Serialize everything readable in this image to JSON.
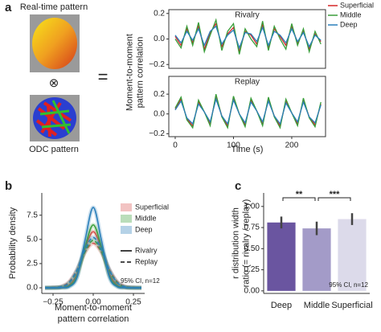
{
  "figure": {
    "panels": [
      "a",
      "b",
      "c"
    ],
    "image_captions": [
      "Real-time pattern",
      "ODC pattern"
    ],
    "symbols": [
      "⊗",
      "="
    ]
  },
  "chart_data": [
    {
      "type": "line",
      "title": "Rivalry",
      "frame": "box",
      "xlim": [
        -11,
        258
      ],
      "ylim": [
        -0.23,
        0.23
      ],
      "yticks": [
        {
          "value": -0.2,
          "label": "−0.2"
        },
        {
          "value": 0,
          "label": "0.0"
        },
        {
          "value": 0.2,
          "label": "0.2"
        }
      ],
      "ylabel": [
        "Moment-to-moment",
        "pattern correlation"
      ],
      "x": [
        0,
        10,
        20,
        30,
        40,
        50,
        60,
        70,
        80,
        90,
        100,
        110,
        120,
        130,
        140,
        150,
        160,
        170,
        180,
        190,
        200,
        210,
        220,
        230,
        240,
        250
      ],
      "series": [
        {
          "name": "Superficial",
          "color": "#d62728",
          "values": [
            0.02,
            -0.05,
            0.08,
            -0.03,
            0.1,
            -0.08,
            0.05,
            0.12,
            -0.06,
            0.04,
            0.09,
            -0.1,
            0.06,
            0.03,
            -0.04,
            0.11,
            -0.07,
            0.08,
            0.02,
            -0.05,
            0.1,
            -0.03,
            0.06,
            -0.08,
            0.04,
            -0.02
          ]
        },
        {
          "name": "Middle",
          "color": "#3a9e3a",
          "values": [
            0.0,
            -0.07,
            0.1,
            -0.05,
            0.13,
            -0.1,
            0.03,
            0.15,
            -0.09,
            0.06,
            0.12,
            -0.12,
            0.08,
            0.0,
            -0.06,
            0.14,
            -0.09,
            0.1,
            0.0,
            -0.08,
            0.12,
            -0.05,
            0.08,
            -0.1,
            0.06,
            -0.04
          ]
        },
        {
          "name": "Deep",
          "color": "#2a7fba",
          "values": [
            0.03,
            -0.03,
            0.06,
            -0.01,
            0.08,
            -0.05,
            0.06,
            0.1,
            -0.04,
            0.03,
            0.07,
            -0.07,
            0.05,
            0.04,
            -0.02,
            0.09,
            -0.05,
            0.06,
            0.03,
            -0.03,
            0.08,
            -0.02,
            0.05,
            -0.06,
            0.03,
            -0.01
          ]
        }
      ]
    },
    {
      "type": "line",
      "title": "Replay",
      "frame": "box",
      "xlim": [
        -11,
        258
      ],
      "ylim": [
        -0.23,
        0.38
      ],
      "yticks": [
        {
          "value": -0.2,
          "label": "−0.2"
        },
        {
          "value": 0,
          "label": "0.0"
        },
        {
          "value": 0.2,
          "label": "0.2"
        }
      ],
      "xticks": [
        0,
        100,
        200
      ],
      "xlabel": "Time (s)",
      "x": [
        0,
        10,
        20,
        30,
        40,
        50,
        60,
        70,
        80,
        90,
        100,
        110,
        120,
        130,
        140,
        150,
        160,
        170,
        180,
        190,
        200,
        210,
        220,
        230,
        240,
        250
      ],
      "series": [
        {
          "color": "#d62728",
          "values": [
            0.05,
            0.15,
            -0.05,
            -0.12,
            0.12,
            0.02,
            -0.1,
            0.18,
            -0.02,
            -0.12,
            0.16,
            0.0,
            -0.11,
            0.14,
            0.03,
            -0.1,
            0.15,
            -0.02,
            -0.12,
            0.13,
            0.01,
            -0.1,
            0.14,
            -0.03,
            -0.11,
            0.1
          ]
        },
        {
          "color": "#3a9e3a",
          "values": [
            0.06,
            0.17,
            -0.06,
            -0.14,
            0.14,
            0.02,
            -0.12,
            0.2,
            -0.03,
            -0.14,
            0.18,
            0.0,
            -0.13,
            0.16,
            0.03,
            -0.12,
            0.17,
            -0.03,
            -0.14,
            0.15,
            0.01,
            -0.12,
            0.16,
            -0.04,
            -0.13,
            0.12
          ]
        },
        {
          "color": "#2a7fba",
          "values": [
            0.04,
            0.13,
            -0.04,
            -0.1,
            0.1,
            0.02,
            -0.08,
            0.15,
            -0.02,
            -0.1,
            0.14,
            0.0,
            -0.09,
            0.12,
            0.03,
            -0.08,
            0.13,
            -0.02,
            -0.1,
            0.11,
            0.01,
            -0.08,
            0.12,
            -0.03,
            -0.09,
            0.09
          ]
        }
      ]
    },
    {
      "type": "density",
      "frame": "spines",
      "xlim": [
        -0.32,
        0.32
      ],
      "ylim": [
        -0.58,
        9.8
      ],
      "xticks": [
        {
          "value": -0.25,
          "label": "−0.25"
        },
        {
          "value": 0,
          "label": "0.00"
        },
        {
          "value": 0.25,
          "label": "0.25"
        }
      ],
      "yticks": [
        {
          "value": 0,
          "label": "0.0"
        },
        {
          "value": 2.5,
          "label": "2.5"
        },
        {
          "value": 5,
          "label": "5.0"
        },
        {
          "value": 7.5,
          "label": "7.5"
        }
      ],
      "xlabel": [
        "Moment-to-moment",
        "pattern correlation"
      ],
      "ylabel": "Probability density",
      "annotation": "95% CI, n=12",
      "line_styles": [
        {
          "name": "Rivalry",
          "dash": "none"
        },
        {
          "name": "Replay",
          "dash": "5 3"
        }
      ],
      "x": [
        -0.3,
        -0.25,
        -0.2,
        -0.15,
        -0.1,
        -0.05,
        0,
        0.05,
        0.1,
        0.15,
        0.2,
        0.25,
        0.3
      ],
      "series": [
        {
          "name": "Superficial",
          "color": "#d9534f",
          "values": [
            [
              0,
              0.01,
              0.03,
              0.26,
              1.45,
              4.1,
              5.8,
              4.1,
              1.45,
              0.26,
              0.03,
              0.01,
              0
            ],
            [
              0,
              0.03,
              0.13,
              0.62,
              1.9,
              3.7,
              4.6,
              3.7,
              1.9,
              0.62,
              0.13,
              0.03,
              0
            ]
          ]
        },
        {
          "name": "Middle",
          "color": "#3a9e3a",
          "values": [
            [
              0,
              0,
              0.03,
              0.16,
              1.2,
              4.3,
              6.5,
              4.3,
              1.2,
              0.16,
              0.03,
              0,
              0
            ],
            [
              0,
              0.01,
              0.08,
              0.49,
              1.76,
              3.8,
              4.9,
              3.8,
              1.76,
              0.49,
              0.08,
              0.01,
              0
            ]
          ]
        },
        {
          "name": "Deep",
          "color": "#2a7fba",
          "values": [
            [
              0,
              0,
              0.02,
              0.1,
              1.1,
              5.0,
              8.3,
              5.0,
              1.1,
              0.1,
              0.02,
              0,
              0
            ],
            [
              0,
              0.01,
              0.09,
              0.52,
              1.87,
              4.0,
              5.2,
              4.0,
              1.87,
              0.52,
              0.09,
              0.01,
              0
            ]
          ]
        }
      ]
    },
    {
      "type": "bar",
      "frame": "spines",
      "ylim": [
        -0.03,
        1.16
      ],
      "yticks": [
        {
          "value": 0,
          "label": "0.00"
        },
        {
          "value": 0.25,
          "label": "0.25"
        },
        {
          "value": 0.5,
          "label": "0.50"
        },
        {
          "value": 0.75,
          "label": "0.75"
        },
        {
          "value": 1,
          "label": "1.00"
        }
      ],
      "ylabel": [
        "r distribution width",
        "ratio (= rivalry / replay)"
      ],
      "annotation": "95% CI, n=12",
      "significance": [
        "**",
        "***"
      ],
      "categories": [
        "Deep",
        "Middle",
        "Superficial"
      ],
      "values": [
        0.81,
        0.74,
        0.85
      ],
      "errors": [
        0.07,
        0.08,
        0.07
      ],
      "colors": [
        "#6a55a0",
        "#a39bc8",
        "#dcdaea"
      ]
    }
  ]
}
